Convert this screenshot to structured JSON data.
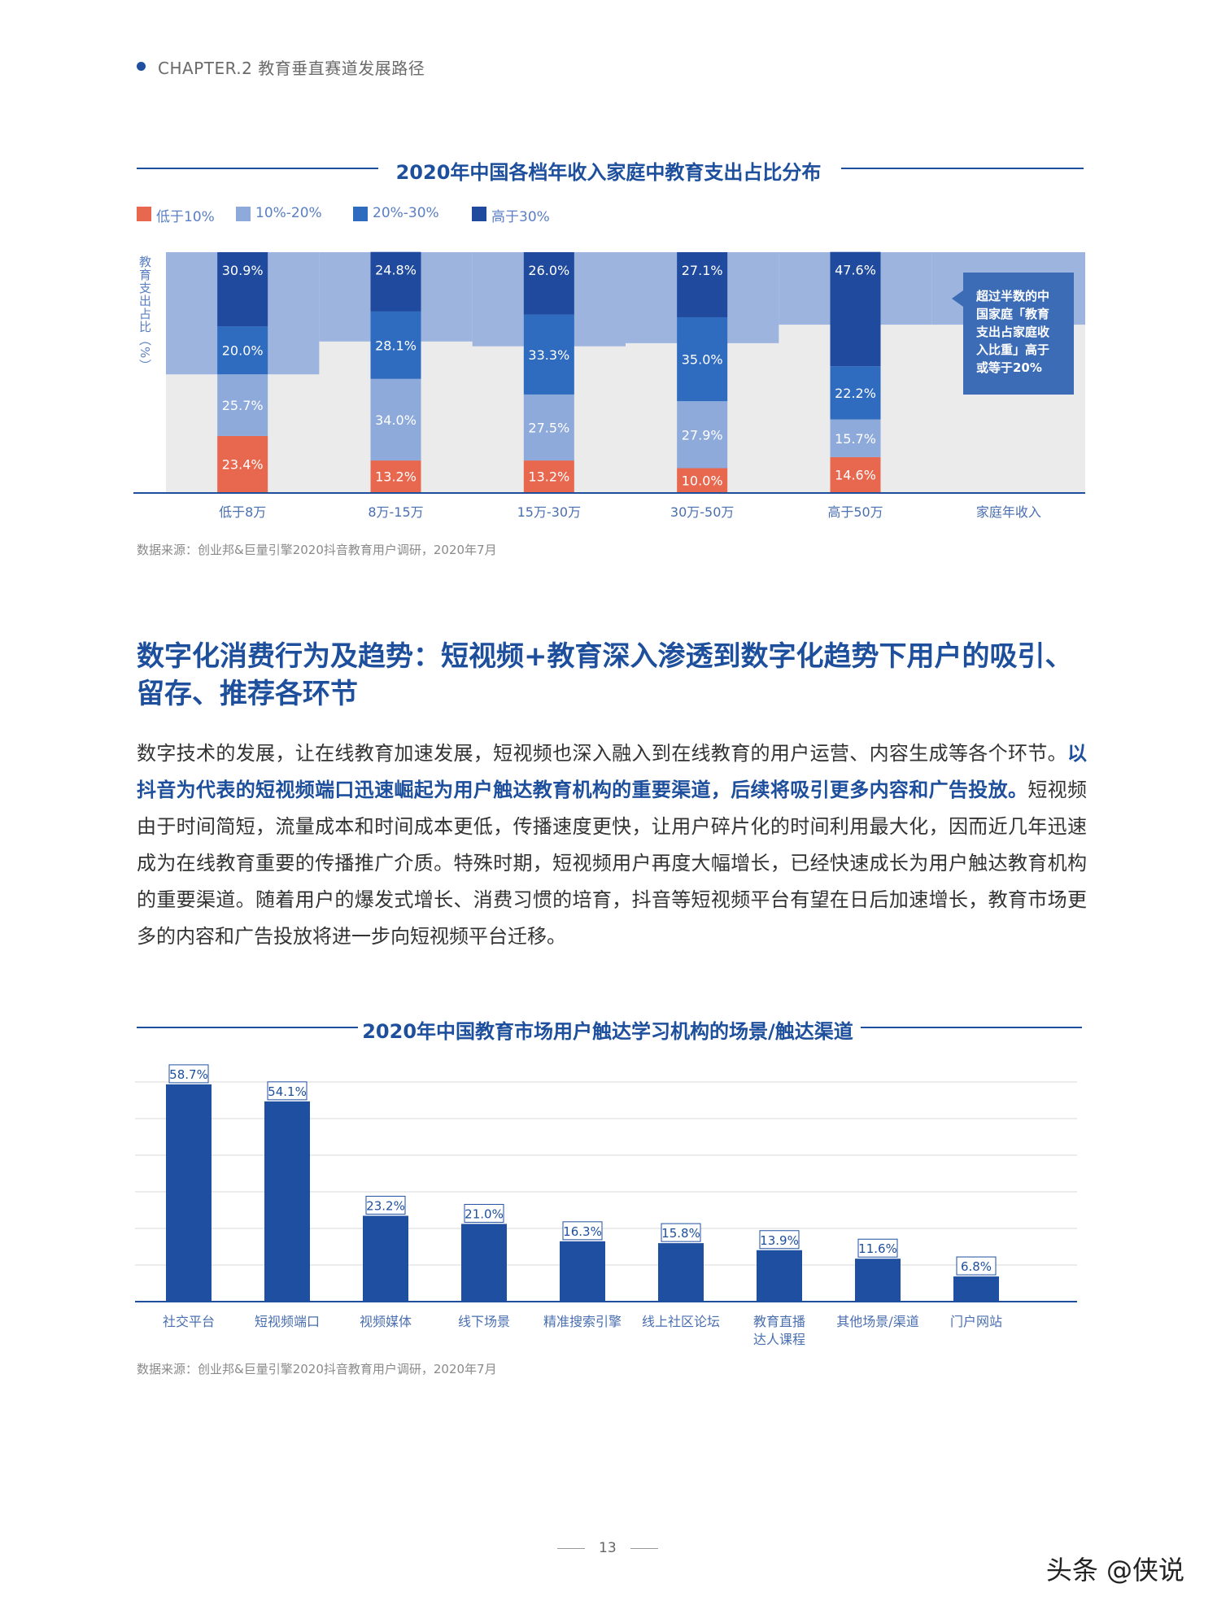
{
  "header": {
    "chapter": "CHAPTER.2 教育垂直赛道发展路径"
  },
  "chart1": {
    "title": "2020年中国各档年收入家庭中教育支出占比分布",
    "source": "数据来源：创业邦&巨量引擎2020抖音教育用户调研，2020年7月"
  },
  "chart2": {
    "title": "2020年中国教育市场用户触达学习机构的场景/触达渠道",
    "source": "数据来源：创业邦&巨量引擎2020抖音教育用户调研，2020年7月"
  },
  "section": {
    "heading": "数字化消费行为及趋势：短视频+教育深入渗透到数字化趋势下用户的吸引、留存、推荐各环节",
    "para_part1": "数字技术的发展，让在线教育加速发展，短视频也深入融入到在线教育的用户运营、内容生成等各个环节。",
    "para_highlight": "以抖音为代表的短视频端口迅速崛起为用户触达教育机构的重要渠道，后续将吸引更多内容和广告投放。",
    "para_part2": "短视频由于时间简短，流量成本和时间成本更低，传播速度更快，让用户碎片化的时间利用最大化，因而近几年迅速成为在线教育重要的传播推广介质。特殊时期，短视频用户再度大幅增长，已经快速成长为用户触达教育机构的重要渠道。随着用户的爆发式增长、消费习惯的培育，抖音等短视频平台有望在日后加速增长，教育市场更多的内容和广告投放将进一步向短视频平台迁移。"
  },
  "footer": {
    "page_number": "13",
    "watermark": "头条 @侠说"
  },
  "chart_data": [
    {
      "type": "bar",
      "stacked": true,
      "title": "2020年中国各档年收入家庭中教育支出占比分布",
      "xlabel": "家庭年收入",
      "ylabel": "教育支出占比（%）",
      "categories": [
        "低于8万",
        "8万-15万",
        "15万-30万",
        "30万-50万",
        "高于50万"
      ],
      "series": [
        {
          "name": "低于10%",
          "color": "#e8684f",
          "values": [
            23.4,
            13.2,
            13.2,
            10.0,
            14.6
          ]
        },
        {
          "name": "10%-20%",
          "color": "#8eaadb",
          "values": [
            25.7,
            34.0,
            27.5,
            27.9,
            15.7
          ]
        },
        {
          "name": "20%-30%",
          "color": "#2f6bbf",
          "values": [
            20.0,
            28.1,
            33.3,
            35.0,
            22.2
          ]
        },
        {
          "name": "高于30%",
          "color": "#1f4a9e",
          "values": [
            30.9,
            24.8,
            26.0,
            27.1,
            47.6
          ]
        }
      ],
      "background_band_upper_pct": [
        49.1,
        62.8,
        60.8,
        62.1,
        69.8
      ],
      "background_band_extra_category": "家庭年收入",
      "ylim": [
        0,
        100
      ],
      "legend_position": "top-left",
      "annotation": "超过半数的中国家庭「教育支出占家庭收入比重」高于或等于20%"
    },
    {
      "type": "bar",
      "title": "2020年中国教育市场用户触达学习机构的场景/触达渠道",
      "categories": [
        "社交平台",
        "短视频端口",
        "视频媒体",
        "线下场景",
        "精准搜索引擎",
        "线上社区论坛",
        "教育直播达人课程",
        "其他场景/渠道",
        "门户网站"
      ],
      "category_lines": [
        [
          "社交平台"
        ],
        [
          "短视频端口"
        ],
        [
          "视频媒体"
        ],
        [
          "线下场景"
        ],
        [
          "精准搜索引擎"
        ],
        [
          "线上社区论坛"
        ],
        [
          "教育直播",
          "达人课程"
        ],
        [
          "其他场景/渠道"
        ],
        [
          "门户网站"
        ]
      ],
      "values": [
        58.7,
        54.1,
        23.2,
        21.0,
        16.3,
        15.8,
        13.9,
        11.6,
        6.8
      ],
      "value_labels": [
        "58.7%",
        "54.1%",
        "23.2%",
        "21.0%",
        "16.3%",
        "15.8%",
        "13.9%",
        "11.6%",
        "6.8%"
      ],
      "color": "#1f4fa0",
      "grid": true,
      "ylim": [
        0,
        60
      ]
    }
  ]
}
